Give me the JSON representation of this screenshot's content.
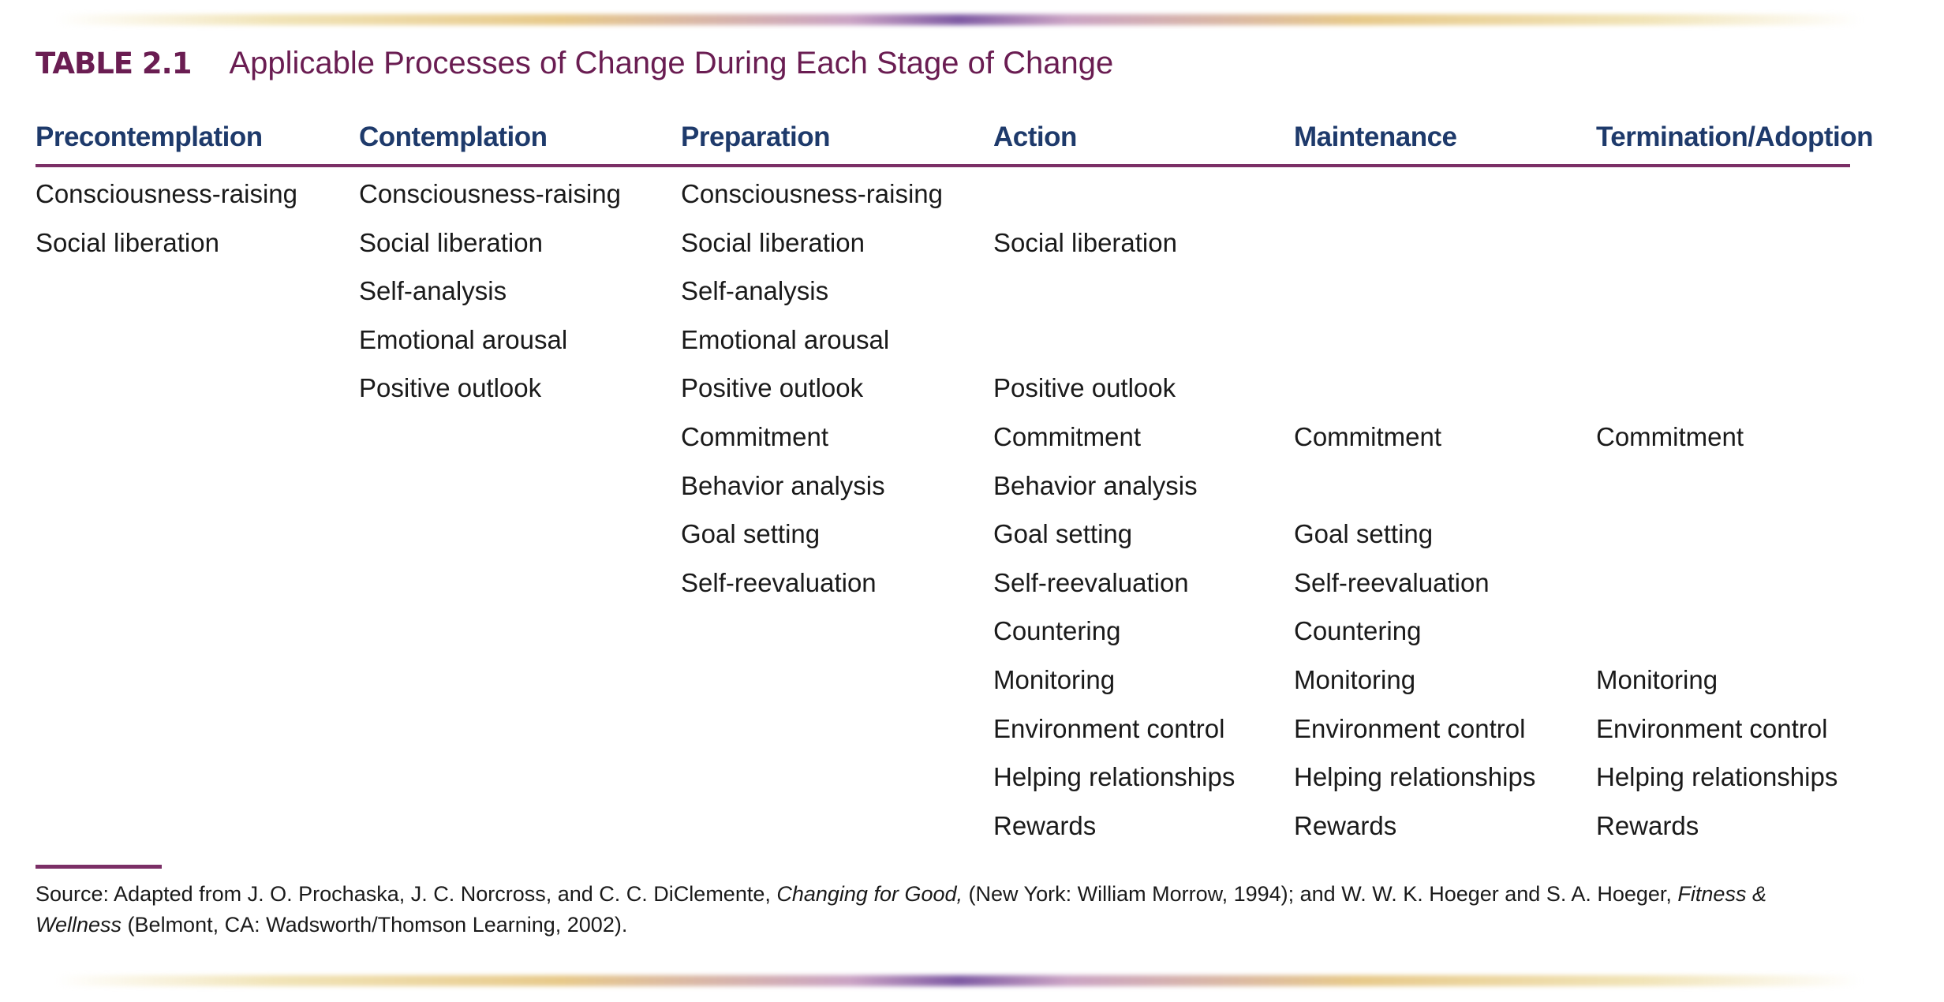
{
  "table_label": "TABLE 2.1",
  "table_title": "Applicable Processes of Change During Each Stage of Change",
  "columns": [
    "Precontemplation",
    "Contemplation",
    "Preparation",
    "Action",
    "Maintenance",
    "Termination/Adoption"
  ],
  "rows": [
    [
      "Consciousness-raising",
      "Consciousness-raising",
      "Consciousness-raising",
      "",
      "",
      ""
    ],
    [
      "Social liberation",
      "Social liberation",
      "Social liberation",
      "Social liberation",
      "",
      ""
    ],
    [
      "",
      "Self-analysis",
      "Self-analysis",
      "",
      "",
      ""
    ],
    [
      "",
      "Emotional arousal",
      "Emotional arousal",
      "",
      "",
      ""
    ],
    [
      "",
      "Positive outlook",
      "Positive outlook",
      "Positive outlook",
      "",
      ""
    ],
    [
      "",
      "",
      "Commitment",
      "Commitment",
      "Commitment",
      "Commitment"
    ],
    [
      "",
      "",
      "Behavior analysis",
      "Behavior analysis",
      "",
      ""
    ],
    [
      "",
      "",
      "Goal setting",
      "Goal setting",
      "Goal setting",
      ""
    ],
    [
      "",
      "",
      "Self-reevaluation",
      "Self-reevaluation",
      "Self-reevaluation",
      ""
    ],
    [
      "",
      "",
      "",
      "Countering",
      "Countering",
      ""
    ],
    [
      "",
      "",
      "",
      "Monitoring",
      "Monitoring",
      "Monitoring"
    ],
    [
      "",
      "",
      "",
      "Environment control",
      "Environment control",
      "Environment control"
    ],
    [
      "",
      "",
      "",
      "Helping relationships",
      "Helping relationships",
      "Helping relationships"
    ],
    [
      "",
      "",
      "",
      "Rewards",
      "Rewards",
      "Rewards"
    ]
  ],
  "source": {
    "prefix": "Source:  Adapted from J. O. Prochaska, J. C. Norcross, and C. C. DiClemente, ",
    "book1": "Changing for Good,",
    "middle": " (New York: William Morrow, 1994); and W. W. K. Hoeger and S. A. Hoeger, ",
    "book2": "Fitness & Wellness",
    "suffix": " (Belmont, CA: Wadsworth/Thomson Learning, 2002)."
  }
}
